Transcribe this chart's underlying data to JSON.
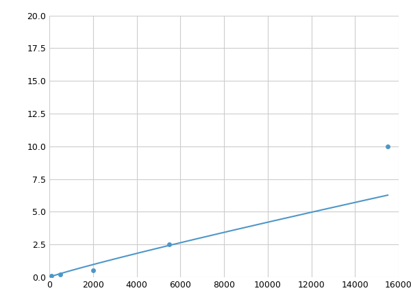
{
  "x": [
    100,
    500,
    2000,
    5500,
    15500
  ],
  "y": [
    0.1,
    0.2,
    0.5,
    2.5,
    10.0
  ],
  "line_color": "#4e96c8",
  "marker_color": "#4e96c8",
  "marker_size": 5,
  "line_width": 1.5,
  "xlim": [
    0,
    16000
  ],
  "ylim": [
    0,
    20.0
  ],
  "xticks": [
    0,
    2000,
    4000,
    6000,
    8000,
    10000,
    12000,
    14000,
    16000
  ],
  "yticks": [
    0.0,
    2.5,
    5.0,
    7.5,
    10.0,
    12.5,
    15.0,
    17.5,
    20.0
  ],
  "grid_color": "#cccccc",
  "background_color": "#ffffff",
  "figsize": [
    6.0,
    4.5
  ],
  "dpi": 100
}
